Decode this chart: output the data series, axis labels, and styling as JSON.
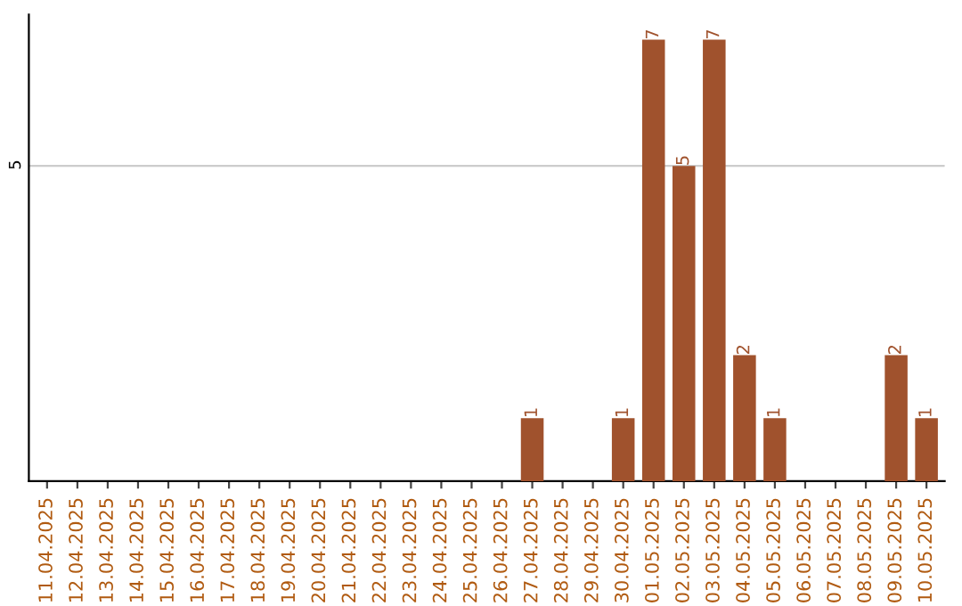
{
  "chart_data": {
    "type": "bar",
    "categories": [
      "11.04.2025",
      "12.04.2025",
      "13.04.2025",
      "14.04.2025",
      "15.04.2025",
      "16.04.2025",
      "17.04.2025",
      "18.04.2025",
      "19.04.2025",
      "20.04.2025",
      "21.04.2025",
      "22.04.2025",
      "23.04.2025",
      "24.04.2025",
      "25.04.2025",
      "26.04.2025",
      "27.04.2025",
      "28.04.2025",
      "29.04.2025",
      "30.04.2025",
      "01.05.2025",
      "02.05.2025",
      "03.05.2025",
      "04.05.2025",
      "05.05.2025",
      "06.05.2025",
      "07.05.2025",
      "08.05.2025",
      "09.05.2025",
      "10.05.2025"
    ],
    "values": [
      null,
      null,
      null,
      null,
      null,
      null,
      null,
      null,
      null,
      null,
      null,
      null,
      null,
      null,
      null,
      null,
      1,
      null,
      null,
      1,
      7,
      5,
      7,
      2,
      1,
      null,
      null,
      null,
      2,
      1
    ],
    "data_labels": true,
    "color": "#a0522d",
    "ylim": [
      0,
      7.4
    ],
    "yticks": [
      5
    ],
    "grid": "y"
  }
}
